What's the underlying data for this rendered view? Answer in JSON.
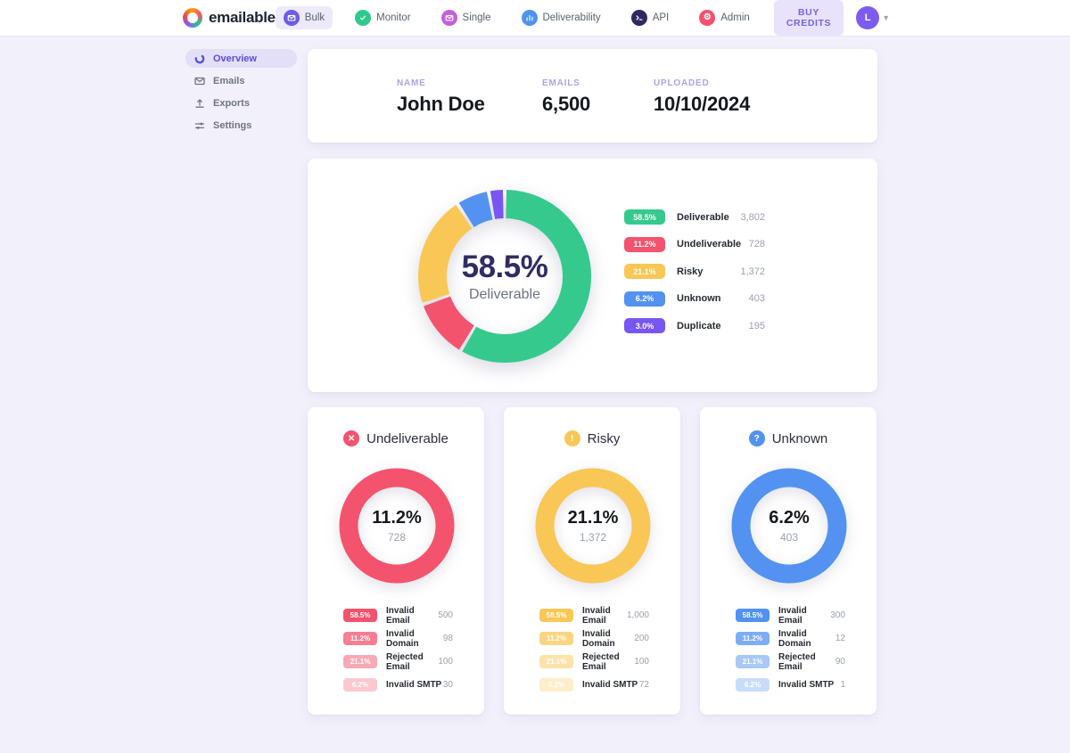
{
  "nav": {
    "logo_text": "emailable",
    "items": [
      {
        "label": "Bulk",
        "icon": "bulk-icon",
        "color": "#6c5ce7",
        "active": true
      },
      {
        "label": "Monitor",
        "icon": "monitor-icon",
        "color": "#2fc98c",
        "active": false
      },
      {
        "label": "Single",
        "icon": "single-icon",
        "color": "#c55edd",
        "active": false
      },
      {
        "label": "Deliverability",
        "icon": "deliverability-icon",
        "color": "#4f93f0",
        "active": false
      },
      {
        "label": "API",
        "icon": "api-icon",
        "color": "#2d2960",
        "active": false
      },
      {
        "label": "Admin",
        "icon": "admin-icon",
        "color": "#f4516c",
        "active": false
      }
    ],
    "buy_credits_label": "BUY CREDITS",
    "avatar_initial": "L"
  },
  "sidebar": {
    "items": [
      {
        "label": "Overview",
        "icon": "overview-icon",
        "active": true
      },
      {
        "label": "Emails",
        "icon": "emails-icon",
        "active": false
      },
      {
        "label": "Exports",
        "icon": "exports-icon",
        "active": false
      },
      {
        "label": "Settings",
        "icon": "settings-icon",
        "active": false
      }
    ]
  },
  "summary": {
    "stats": [
      {
        "label": "NAME",
        "value": "John Doe"
      },
      {
        "label": "EMAILS",
        "value": "6,500"
      },
      {
        "label": "UPLOADED",
        "value": "10/10/2024"
      }
    ]
  },
  "chart_data": [
    {
      "type": "pie",
      "name": "verification-overview-donut",
      "center_value": "58.5%",
      "center_label": "Deliverable",
      "legend_position": "right",
      "segments": [
        {
          "label": "Deliverable",
          "pct": 58.5,
          "count": "3,802",
          "color": "#36c98e"
        },
        {
          "label": "Undeliverable",
          "pct": 11.2,
          "count": "728",
          "color": "#f4536e"
        },
        {
          "label": "Risky",
          "pct": 21.1,
          "count": "1,372",
          "color": "#f9c756"
        },
        {
          "label": "Unknown",
          "pct": 6.2,
          "count": "403",
          "color": "#5392f0"
        },
        {
          "label": "Duplicate",
          "pct": 3.0,
          "count": "195",
          "color": "#7856f2"
        }
      ]
    },
    {
      "type": "pie",
      "title": "Undeliverable",
      "icon": "x-circle-icon",
      "color": "#f4536e",
      "pct": 11.2,
      "center_value": "11.2%",
      "center_label": "728",
      "rows": [
        {
          "badge": "58.5%",
          "label": "Invalid Email",
          "value": "500"
        },
        {
          "badge": "11.2%",
          "label": "Invalid Domain",
          "value": "98"
        },
        {
          "badge": "21.1%",
          "label": "Rejected Email",
          "value": "100"
        },
        {
          "badge": "6.2%",
          "label": "Invalid SMTP",
          "value": "30"
        }
      ]
    },
    {
      "type": "pie",
      "title": "Risky",
      "icon": "exclamation-circle-icon",
      "color": "#f9c756",
      "pct": 21.1,
      "center_value": "21.1%",
      "center_label": "1,372",
      "rows": [
        {
          "badge": "58.5%",
          "label": "Invalid Email",
          "value": "1,000"
        },
        {
          "badge": "11.2%",
          "label": "Invalid Domain",
          "value": "200"
        },
        {
          "badge": "21.1%",
          "label": "Rejected Email",
          "value": "100"
        },
        {
          "badge": "6.2%",
          "label": "Invalid SMTP",
          "value": "72"
        }
      ]
    },
    {
      "type": "pie",
      "title": "Unknown",
      "icon": "question-circle-icon",
      "color": "#5392f0",
      "pct": 6.2,
      "center_value": "6.2%",
      "center_label": "403",
      "rows": [
        {
          "badge": "58.5%",
          "label": "Invalid Email",
          "value": "300"
        },
        {
          "badge": "11.2%",
          "label": "Invalid Domain",
          "value": "12"
        },
        {
          "badge": "21.1%",
          "label": "Rejected Email",
          "value": "90"
        },
        {
          "badge": "6.2%",
          "label": "Invalid SMTP",
          "value": "1"
        }
      ]
    }
  ]
}
